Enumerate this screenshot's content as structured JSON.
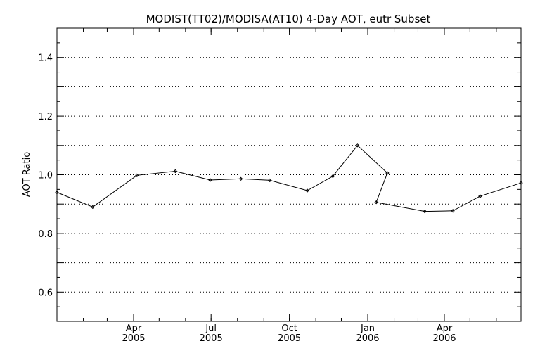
{
  "chart_data": {
    "type": "line",
    "title": "MODIST(TT02)/MODISA(AT10) 4-Day AOT, eutr Subset",
    "xlabel": "",
    "ylabel": "AOT Ratio",
    "ylim": [
      0.5,
      1.5
    ],
    "xlim": [
      "2005-01-01",
      "2006-06-30"
    ],
    "y_ticks": [
      "0.6",
      "0.8",
      "1.0",
      "1.2",
      "1.4"
    ],
    "x_ticks": [
      {
        "month": "Apr",
        "year": "2005",
        "date": "2005-04-01"
      },
      {
        "month": "Jul",
        "year": "2005",
        "date": "2005-07-01"
      },
      {
        "month": "Oct",
        "year": "2005",
        "date": "2005-10-01"
      },
      {
        "month": "Jan",
        "year": "2006",
        "date": "2006-01-01"
      },
      {
        "month": "Apr",
        "year": "2006",
        "date": "2006-04-01"
      }
    ],
    "grid": "horizontal-dotted",
    "series": [
      {
        "x": [
          "2005-01-01",
          "2005-02-12",
          "2005-04-05",
          "2005-05-20",
          "2005-06-30",
          "2005-08-05",
          "2005-09-08",
          "2005-10-22",
          "2005-11-21",
          "2005-12-20",
          "2006-01-24",
          "2006-01-11",
          "2006-03-09",
          "2006-04-11",
          "2006-05-13",
          "2006-06-30"
        ],
        "values": [
          0.94,
          0.89,
          0.998,
          1.012,
          0.982,
          0.986,
          0.981,
          0.946,
          0.995,
          1.1,
          1.006,
          0.906,
          0.875,
          0.877,
          0.927,
          0.972
        ]
      }
    ]
  }
}
